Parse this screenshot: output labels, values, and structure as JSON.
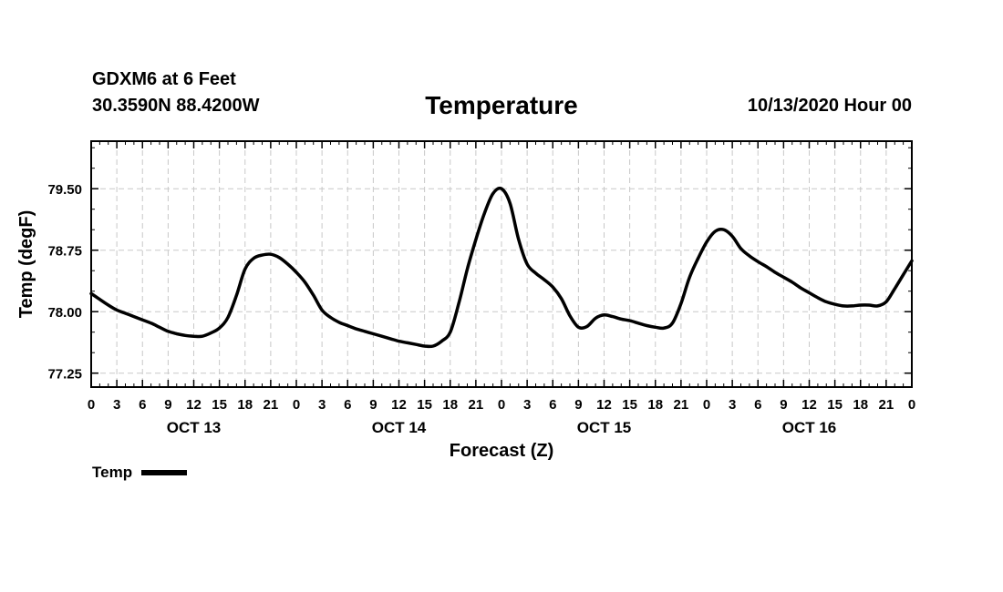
{
  "header": {
    "station": "GDXM6 at 6 Feet",
    "coordinates": "30.3590N 88.4200W",
    "title": "Temperature",
    "datetime": "10/13/2020 Hour 00"
  },
  "legend": {
    "label": "Temp"
  },
  "chart_data": {
    "type": "line",
    "title": "Temperature",
    "xlabel": "Forecast (Z)",
    "ylabel": "Temp (degF)",
    "xlim": [
      0,
      96
    ],
    "ylim": [
      77.08,
      80.08
    ],
    "yticks": [
      77.25,
      78.0,
      78.75,
      79.5
    ],
    "ytick_labels": [
      "77.25",
      "78.00",
      "78.75",
      "79.50"
    ],
    "xticks": [
      0,
      3,
      6,
      9,
      12,
      15,
      18,
      21,
      24,
      27,
      30,
      33,
      36,
      39,
      42,
      45,
      48,
      51,
      54,
      57,
      60,
      63,
      66,
      69,
      72,
      75,
      78,
      81,
      84,
      87,
      90,
      93,
      96
    ],
    "xtick_labels": [
      "0",
      "3",
      "6",
      "9",
      "12",
      "15",
      "18",
      "21",
      "0",
      "3",
      "6",
      "9",
      "12",
      "15",
      "18",
      "21",
      "0",
      "3",
      "6",
      "9",
      "12",
      "15",
      "18",
      "21",
      "0",
      "3",
      "6",
      "9",
      "12",
      "15",
      "18",
      "21",
      "0"
    ],
    "day_labels": [
      {
        "label": "OCT 13",
        "hour": 12
      },
      {
        "label": "OCT 14",
        "hour": 36
      },
      {
        "label": "OCT 15",
        "hour": 60
      },
      {
        "label": "OCT 16",
        "hour": 84
      }
    ],
    "grid": true,
    "legend_position": "bottom-left",
    "series": [
      {
        "name": "Temp",
        "x": [
          0,
          1,
          2,
          3,
          4,
          5,
          6,
          7,
          8,
          9,
          10,
          11,
          12,
          13,
          14,
          15,
          16,
          17,
          18,
          19,
          20,
          21,
          22,
          23,
          24,
          25,
          26,
          27,
          28,
          29,
          30,
          31,
          32,
          33,
          34,
          35,
          36,
          37,
          38,
          39,
          40,
          41,
          42,
          43,
          44,
          45,
          46,
          47,
          48,
          49,
          50,
          51,
          52,
          53,
          54,
          55,
          56,
          57,
          58,
          59,
          60,
          61,
          62,
          63,
          64,
          65,
          66,
          67,
          68,
          69,
          70,
          71,
          72,
          73,
          74,
          75,
          76,
          77,
          78,
          79,
          80,
          81,
          82,
          83,
          84,
          85,
          86,
          87,
          88,
          89,
          90,
          91,
          92,
          93,
          94,
          95,
          96
        ],
        "values": [
          78.22,
          78.15,
          78.08,
          78.02,
          77.98,
          77.94,
          77.9,
          77.86,
          77.81,
          77.76,
          77.73,
          77.71,
          77.7,
          77.7,
          77.74,
          77.8,
          77.93,
          78.2,
          78.52,
          78.65,
          78.69,
          78.7,
          78.66,
          78.58,
          78.48,
          78.36,
          78.2,
          78.02,
          77.93,
          77.87,
          77.83,
          77.79,
          77.76,
          77.73,
          77.7,
          77.67,
          77.64,
          77.62,
          77.6,
          77.58,
          77.58,
          77.64,
          77.75,
          78.1,
          78.52,
          78.88,
          79.2,
          79.44,
          79.5,
          79.32,
          78.88,
          78.58,
          78.47,
          78.39,
          78.3,
          78.16,
          77.95,
          77.81,
          77.82,
          77.92,
          77.96,
          77.94,
          77.91,
          77.89,
          77.86,
          77.83,
          77.81,
          77.8,
          77.86,
          78.1,
          78.42,
          78.65,
          78.85,
          78.98,
          79.0,
          78.92,
          78.77,
          78.68,
          78.61,
          78.55,
          78.48,
          78.42,
          78.36,
          78.29,
          78.23,
          78.17,
          78.12,
          78.09,
          78.07,
          78.07,
          78.08,
          78.08,
          78.07,
          78.12,
          78.28,
          78.45,
          78.62
        ]
      }
    ]
  }
}
